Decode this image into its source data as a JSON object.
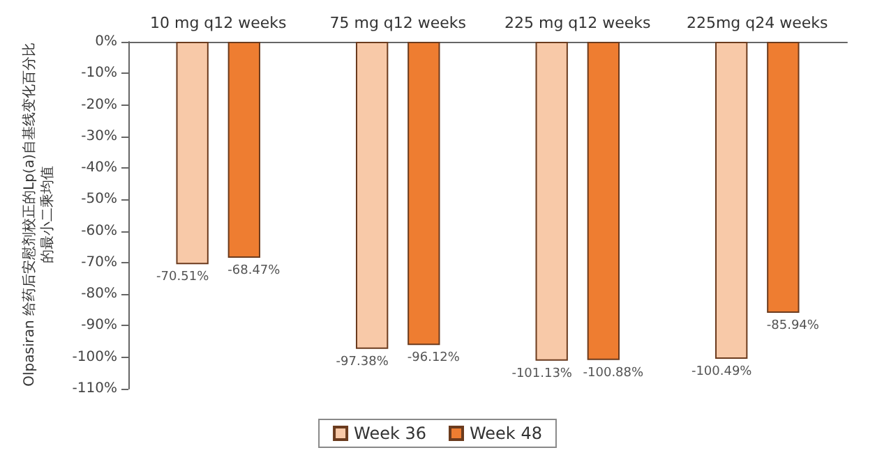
{
  "chart_data": {
    "type": "bar",
    "ylabel": "Olpasiran 给药后安慰剂校正的Lp(a)自基线变化百分比的最小二乘均值",
    "categories": [
      "10 mg q12 weeks",
      "75 mg q12 weeks",
      "225 mg q12 weeks",
      "225mg q24 weeks"
    ],
    "series": [
      {
        "name": "Week 36",
        "color": "#f8c9a8",
        "values": [
          -70.51,
          -97.38,
          -101.13,
          -100.49
        ],
        "value_labels": [
          "-70.51%",
          "-97.38%",
          "-101.13%",
          "-100.49%"
        ]
      },
      {
        "name": "Week 48",
        "color": "#ee7d31",
        "values": [
          -68.47,
          -96.12,
          -100.88,
          -85.94
        ],
        "value_labels": [
          "-68.47%",
          "-96.12%",
          "-100.88%",
          "-85.94%"
        ]
      }
    ],
    "ylim": [
      -110,
      0
    ],
    "yticks": [
      {
        "value": 0,
        "label": "0%"
      },
      {
        "value": -10,
        "label": "-10%"
      },
      {
        "value": -20,
        "label": "-20%"
      },
      {
        "value": -30,
        "label": "-30%"
      },
      {
        "value": -40,
        "label": "-40%"
      },
      {
        "value": -50,
        "label": "-50%"
      },
      {
        "value": -60,
        "label": "-60%"
      },
      {
        "value": -70,
        "label": "-70%"
      },
      {
        "value": -80,
        "label": "-80%"
      },
      {
        "value": -90,
        "label": "-90%"
      },
      {
        "value": -100,
        "label": "-100%"
      },
      {
        "value": -110,
        "label": "-110%"
      }
    ],
    "grid": false,
    "legend": "bottom"
  }
}
